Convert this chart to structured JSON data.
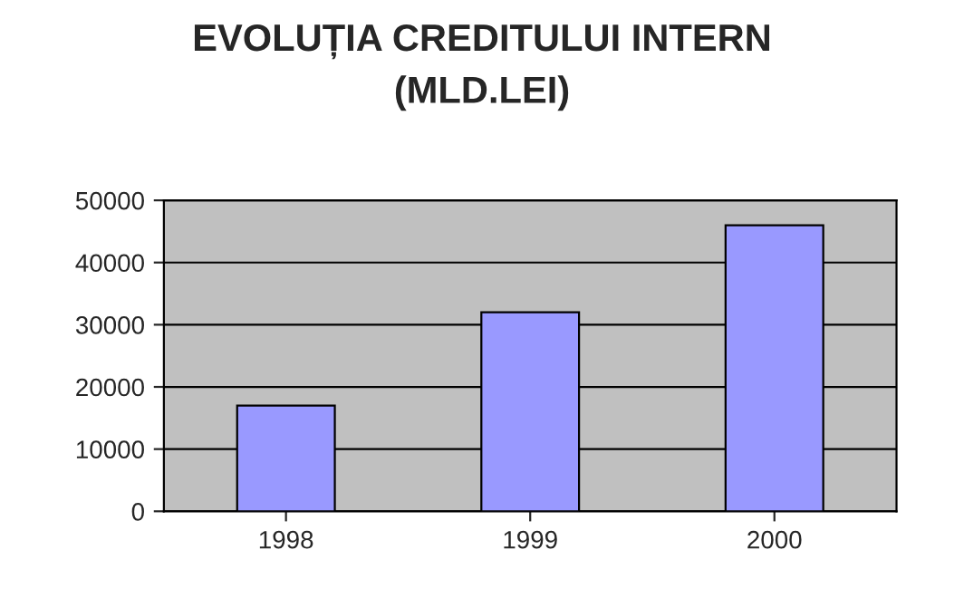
{
  "chart_data": {
    "type": "bar",
    "title": "EVOLUȚIA CREDITULUI INTERN\n(MLD.LEI)",
    "categories": [
      "1998",
      "1999",
      "2000"
    ],
    "values": [
      17000,
      32000,
      46000
    ],
    "color": "#9999ff",
    "ylim": [
      0,
      50000
    ],
    "yticks": [
      0,
      10000,
      20000,
      30000,
      40000,
      50000
    ],
    "grid": "y"
  }
}
